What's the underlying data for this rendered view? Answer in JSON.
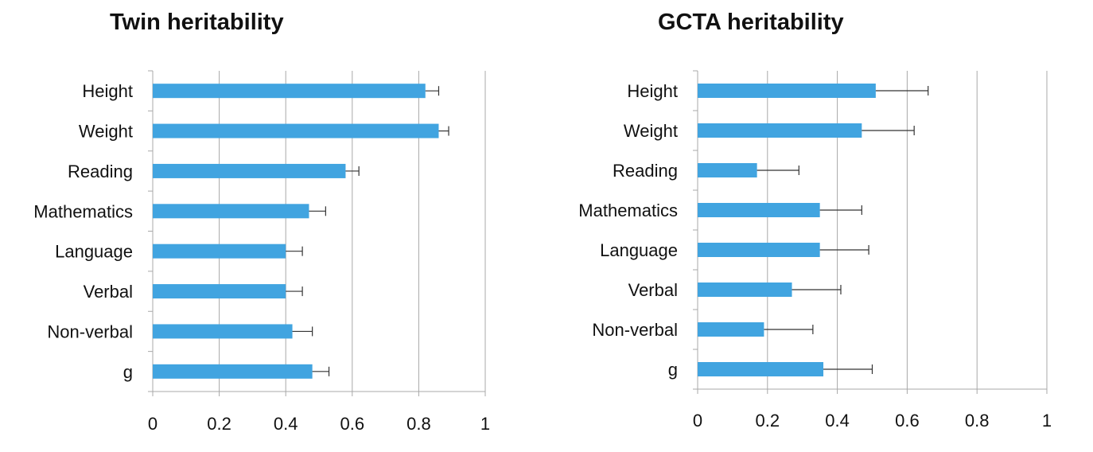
{
  "chart_data": [
    {
      "type": "bar",
      "orientation": "horizontal",
      "title": "Twin heritability",
      "categories": [
        "Height",
        "Weight",
        "Reading",
        "Mathematics",
        "Language",
        "Verbal",
        "Non-verbal",
        "g"
      ],
      "values": [
        0.82,
        0.86,
        0.58,
        0.47,
        0.4,
        0.4,
        0.42,
        0.48
      ],
      "error_high": [
        0.86,
        0.89,
        0.62,
        0.52,
        0.45,
        0.45,
        0.48,
        0.53
      ],
      "xlim": [
        0,
        1
      ],
      "xticks": [
        "0",
        "0.2",
        "0.4",
        "0.6",
        "0.8",
        "1"
      ],
      "grid": true,
      "bar_color": "#41a4e0"
    },
    {
      "type": "bar",
      "orientation": "horizontal",
      "title": "GCTA heritability",
      "categories": [
        "Height",
        "Weight",
        "Reading",
        "Mathematics",
        "Language",
        "Verbal",
        "Non-verbal",
        "g"
      ],
      "values": [
        0.51,
        0.47,
        0.17,
        0.35,
        0.35,
        0.27,
        0.19,
        0.36
      ],
      "error_high": [
        0.66,
        0.62,
        0.29,
        0.47,
        0.49,
        0.41,
        0.33,
        0.5
      ],
      "xlim": [
        0,
        1
      ],
      "xticks": [
        "0",
        "0.2",
        "0.4",
        "0.6",
        "0.8",
        "1"
      ],
      "grid": true,
      "bar_color": "#41a4e0"
    }
  ]
}
